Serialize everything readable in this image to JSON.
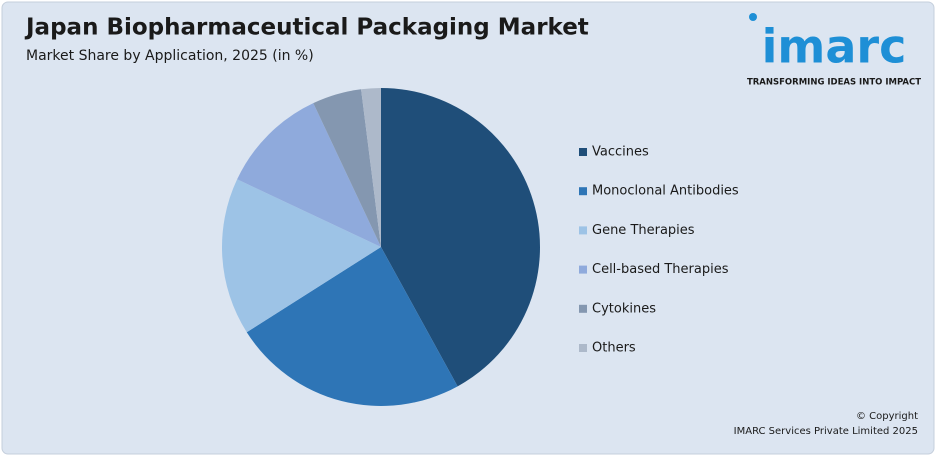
{
  "chart_data": {
    "type": "pie",
    "title": "Japan Biopharmaceutical Packaging Market",
    "subtitle": "Market Share by Application, 2025 (in %)",
    "categories": [
      "Vaccines",
      "Monoclonal Antibodies",
      "Gene Therapies",
      "Cell-based Therapies",
      "Cytokines",
      "Others"
    ],
    "values": [
      42,
      24,
      16,
      11,
      5,
      2
    ],
    "colors": [
      "#1f4e79",
      "#2e75b6",
      "#9dc3e6",
      "#8faadc",
      "#8497b0",
      "#adb9ca"
    ],
    "legend": "right"
  },
  "logo": {
    "name": "imarc",
    "tagline": "TRANSFORMING IDEAS INTO IMPACT"
  },
  "footer": {
    "copyright": "© Copyright",
    "owner": "IMARC Services Private Limited 2025"
  }
}
